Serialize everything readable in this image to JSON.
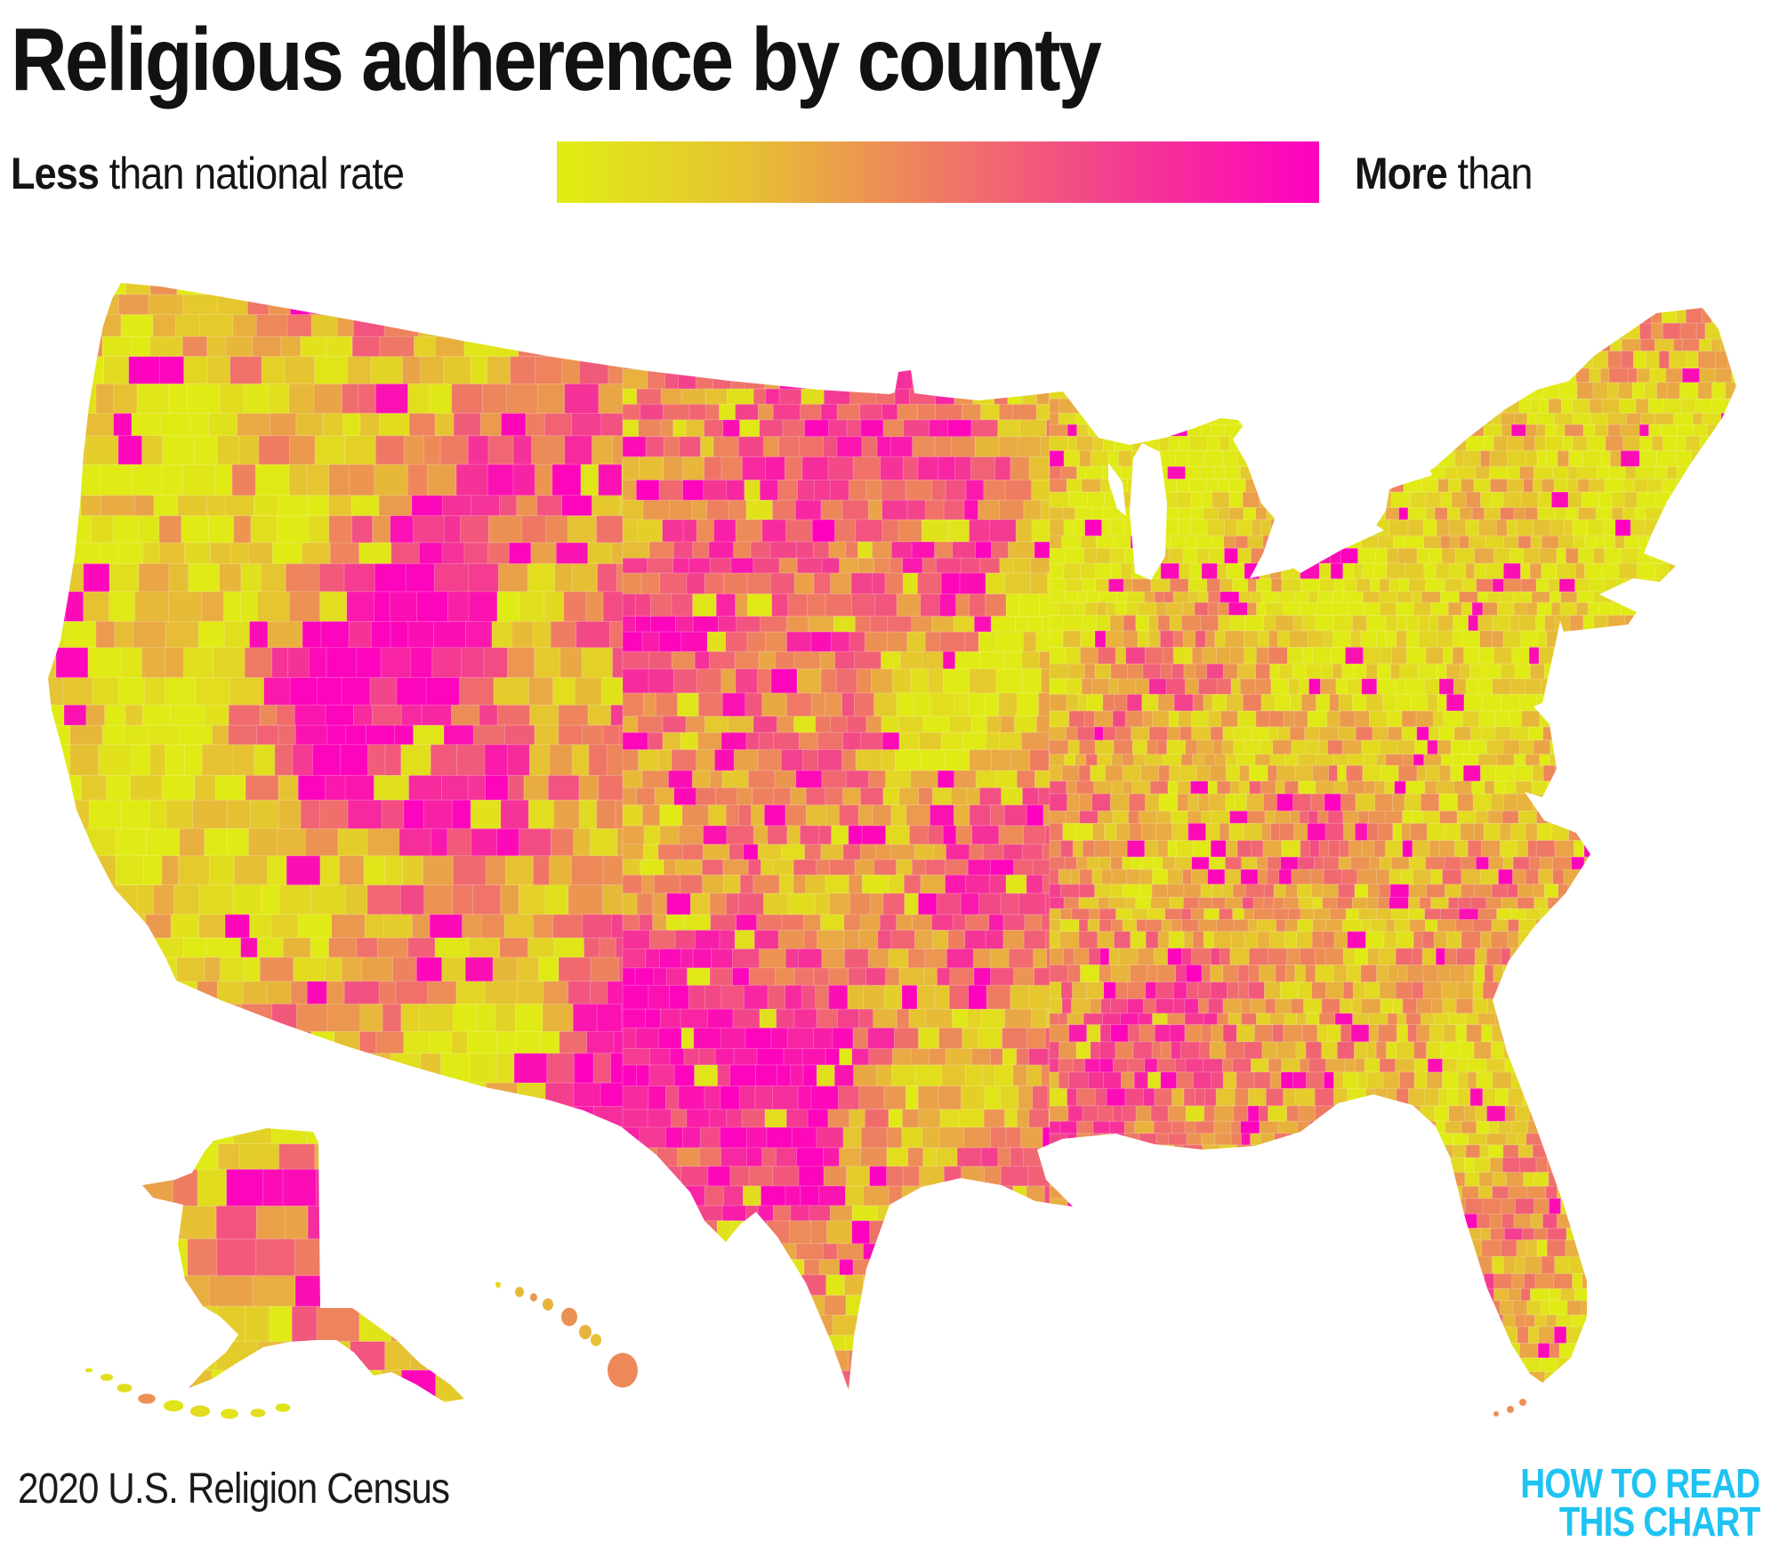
{
  "title": "Religious adherence by county",
  "legend": {
    "less_bold": "Less",
    "less_rest": " than national rate",
    "more_bold": "More",
    "more_rest": " than",
    "gradient_stops": [
      "#dfee12",
      "#e6c133",
      "#ef7b63",
      "#f43a92",
      "#fe00c0"
    ]
  },
  "source": "2020 U.S. Religion Census",
  "logo": {
    "line1": "HOW TO READ",
    "line2": "THIS CHART",
    "color": "#1ec3f2"
  },
  "chart_data": {
    "type": "choropleth_map",
    "region": "United States counties (contiguous U.S., Alaska and Hawaii)",
    "measure": "Religious adherence relative to the national rate",
    "scale": {
      "min_label": "Less than national rate",
      "max_label": "More than national rate",
      "min_color": "#dfee12",
      "mid_color": "#ef7b63",
      "max_color": "#fe00c0"
    },
    "legend_position": "top",
    "source": "2020 U.S. Religion Census"
  }
}
